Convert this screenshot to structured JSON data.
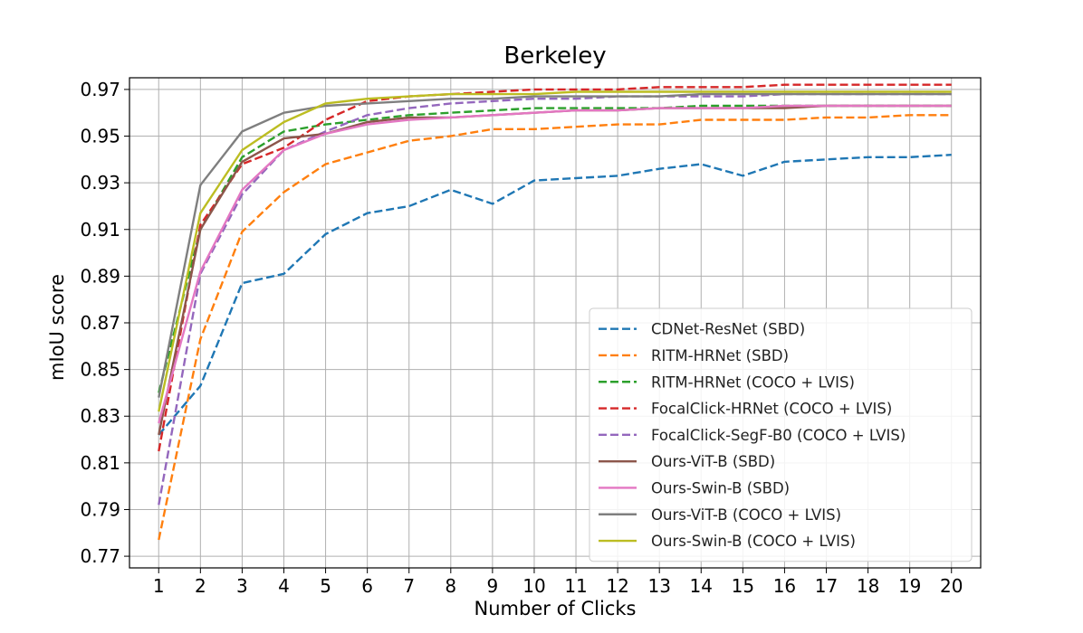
{
  "chart_data": {
    "type": "line",
    "title": "Berkeley",
    "xlabel": "Number of Clicks",
    "ylabel": "mIoU score",
    "x": [
      1,
      2,
      3,
      4,
      5,
      6,
      7,
      8,
      9,
      10,
      11,
      12,
      13,
      14,
      15,
      16,
      17,
      18,
      19,
      20
    ],
    "xlim": [
      0.3,
      20.7
    ],
    "ylim": [
      0.765,
      0.975
    ],
    "yticks": [
      0.77,
      0.79,
      0.81,
      0.83,
      0.85,
      0.87,
      0.89,
      0.91,
      0.93,
      0.95,
      0.97
    ],
    "ytick_labels": [
      "0.77",
      "0.79",
      "0.81",
      "0.83",
      "0.85",
      "0.87",
      "0.89",
      "0.91",
      "0.93",
      "0.95",
      "0.97"
    ],
    "grid": true,
    "legend_position": "lower-right",
    "series": [
      {
        "name": "CDNet-ResNet (SBD)",
        "color": "#1f77b4",
        "dashed": true,
        "values": [
          0.822,
          0.843,
          0.887,
          0.891,
          0.908,
          0.917,
          0.92,
          0.927,
          0.921,
          0.931,
          0.932,
          0.933,
          0.936,
          0.938,
          0.933,
          0.939,
          0.94,
          0.941,
          0.941,
          0.942
        ]
      },
      {
        "name": "RITM-HRNet (SBD)",
        "color": "#ff7f0e",
        "dashed": true,
        "values": [
          0.777,
          0.863,
          0.909,
          0.926,
          0.938,
          0.943,
          0.948,
          0.95,
          0.953,
          0.953,
          0.954,
          0.955,
          0.955,
          0.957,
          0.957,
          0.957,
          0.958,
          0.958,
          0.959,
          0.959
        ]
      },
      {
        "name": "RITM-HRNet (COCO + LVIS)",
        "color": "#2ca02c",
        "dashed": true,
        "values": [
          0.84,
          0.91,
          0.941,
          0.952,
          0.955,
          0.957,
          0.959,
          0.96,
          0.961,
          0.962,
          0.962,
          0.962,
          0.962,
          0.963,
          0.963,
          0.963,
          0.963,
          0.963,
          0.963,
          0.963
        ]
      },
      {
        "name": "FocalClick-HRNet (COCO + LVIS)",
        "color": "#d62728",
        "dashed": true,
        "values": [
          0.815,
          0.912,
          0.938,
          0.945,
          0.957,
          0.965,
          0.967,
          0.968,
          0.969,
          0.97,
          0.97,
          0.97,
          0.971,
          0.971,
          0.971,
          0.972,
          0.972,
          0.972,
          0.972,
          0.972
        ]
      },
      {
        "name": "FocalClick-SegF-B0 (COCO + LVIS)",
        "color": "#9467bd",
        "dashed": true,
        "values": [
          0.792,
          0.891,
          0.925,
          0.944,
          0.952,
          0.959,
          0.962,
          0.964,
          0.965,
          0.966,
          0.966,
          0.967,
          0.967,
          0.967,
          0.967,
          0.968,
          0.968,
          0.968,
          0.968,
          0.968
        ]
      },
      {
        "name": "Ours-ViT-B (SBD)",
        "color": "#8c564b",
        "dashed": false,
        "values": [
          0.822,
          0.91,
          0.939,
          0.949,
          0.951,
          0.956,
          0.958,
          0.958,
          0.959,
          0.96,
          0.961,
          0.961,
          0.962,
          0.962,
          0.962,
          0.962,
          0.963,
          0.963,
          0.963,
          0.963
        ]
      },
      {
        "name": "Ours-Swin-B (SBD)",
        "color": "#e377c2",
        "dashed": false,
        "values": [
          0.827,
          0.892,
          0.927,
          0.944,
          0.951,
          0.955,
          0.957,
          0.958,
          0.959,
          0.96,
          0.961,
          0.961,
          0.962,
          0.962,
          0.962,
          0.963,
          0.963,
          0.963,
          0.963,
          0.963
        ]
      },
      {
        "name": "Ours-ViT-B (COCO + LVIS)",
        "color": "#7f7f7f",
        "dashed": false,
        "values": [
          0.838,
          0.929,
          0.952,
          0.96,
          0.963,
          0.964,
          0.965,
          0.966,
          0.966,
          0.967,
          0.967,
          0.967,
          0.967,
          0.968,
          0.968,
          0.968,
          0.968,
          0.968,
          0.968,
          0.968
        ]
      },
      {
        "name": "Ours-Swin-B (COCO + LVIS)",
        "color": "#bcbd22",
        "dashed": false,
        "values": [
          0.832,
          0.917,
          0.944,
          0.956,
          0.964,
          0.966,
          0.967,
          0.968,
          0.968,
          0.968,
          0.969,
          0.969,
          0.969,
          0.969,
          0.969,
          0.969,
          0.969,
          0.969,
          0.969,
          0.969
        ]
      }
    ]
  }
}
